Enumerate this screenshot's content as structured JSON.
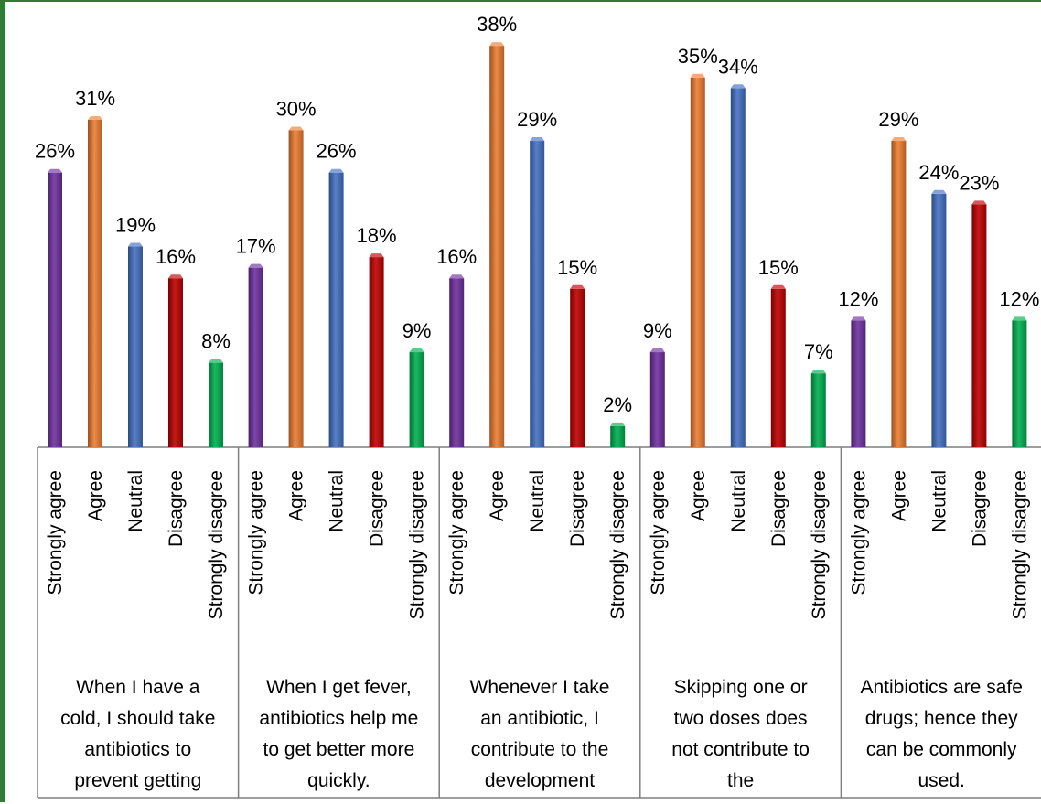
{
  "chart_data": {
    "type": "bar",
    "title": "",
    "xlabel": "",
    "ylabel": "",
    "ylim": [
      0,
      40
    ],
    "grid": false,
    "legend": "none",
    "response_options": [
      "Strongly agree",
      "Agree",
      "Neutral",
      "Disagree",
      "Strongly disagree"
    ],
    "colors": [
      "#7030a0",
      "#ed7d31",
      "#4472c4",
      "#c00000",
      "#00b050"
    ],
    "groups": [
      {
        "lines": [
          "When I have a",
          "cold, I should take",
          "antibiotics to",
          "prevent getting"
        ],
        "values": [
          26,
          31,
          19,
          16,
          8
        ],
        "labels": [
          "26%",
          "31%",
          "19%",
          "16%",
          "8%"
        ]
      },
      {
        "lines": [
          "When I get fever,",
          "antibiotics help me",
          "to get better more",
          "quickly."
        ],
        "values": [
          17,
          30,
          26,
          18,
          9
        ],
        "labels": [
          "17%",
          "30%",
          "26%",
          "18%",
          "9%"
        ]
      },
      {
        "lines": [
          "Whenever I take",
          "an antibiotic, I",
          "contribute to the",
          "development"
        ],
        "values": [
          16,
          38,
          29,
          15,
          2
        ],
        "labels": [
          "16%",
          "38%",
          "29%",
          "15%",
          "2%"
        ]
      },
      {
        "lines": [
          "Skipping one or",
          "two doses does",
          "not contribute to",
          "the"
        ],
        "values": [
          9,
          35,
          34,
          15,
          7
        ],
        "labels": [
          "9%",
          "35%",
          "34%",
          "15%",
          "7%"
        ]
      },
      {
        "lines": [
          "Antibiotics are safe",
          "drugs; hence they",
          "can be commonly",
          "used."
        ],
        "values": [
          12,
          29,
          24,
          23,
          12
        ],
        "labels": [
          "12%",
          "29%",
          "24%",
          "23%",
          "12%"
        ]
      }
    ]
  }
}
